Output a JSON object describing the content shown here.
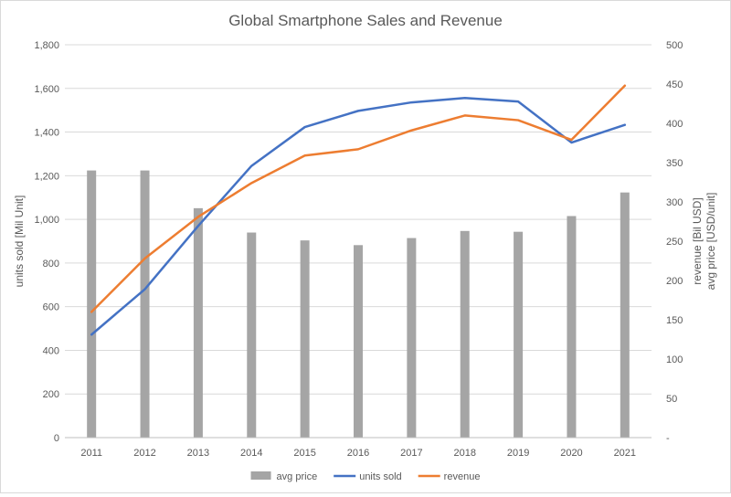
{
  "chart_data": {
    "type": "bar+line",
    "title": "Global Smartphone Sales and Revenue",
    "categories": [
      "2011",
      "2012",
      "2013",
      "2014",
      "2015",
      "2016",
      "2017",
      "2018",
      "2019",
      "2020",
      "2021"
    ],
    "y_left": {
      "label": "units sold [Mil Unit]",
      "range": [
        0,
        1800
      ],
      "ticks": [
        0,
        200,
        400,
        600,
        800,
        1000,
        1200,
        1400,
        1600,
        1800
      ],
      "tick_labels": [
        "0",
        "200",
        "400",
        "600",
        "800",
        "1,000",
        "1,200",
        "1,400",
        "1,600",
        "1,800"
      ]
    },
    "y_right": {
      "label_lines": [
        "revenue [Bil USD]",
        "avg price [USD/unit]"
      ],
      "range": [
        0,
        500
      ],
      "ticks": [
        0,
        50,
        100,
        150,
        200,
        250,
        300,
        350,
        400,
        450,
        500
      ],
      "tick_labels": [
        "-",
        "50",
        "100",
        "150",
        "200",
        "250",
        "300",
        "350",
        "400",
        "450",
        "500"
      ]
    },
    "grid": "horizontal",
    "legend_position": "bottom",
    "series": [
      {
        "name": "avg price",
        "type": "bar",
        "axis": "right",
        "color": "#a5a5a5",
        "values": [
          340,
          340,
          292,
          261,
          251,
          245,
          254,
          263,
          262,
          282,
          312
        ]
      },
      {
        "name": "units sold",
        "type": "line",
        "axis": "left",
        "color": "#4472c4",
        "values": [
          472,
          680,
          970,
          1245,
          1423,
          1497,
          1536,
          1556,
          1540,
          1352,
          1433
        ]
      },
      {
        "name": "revenue",
        "type": "line",
        "axis": "right",
        "color": "#ed7d31",
        "values": [
          160,
          228,
          281,
          324,
          359,
          367,
          391,
          410,
          404,
          379,
          448
        ]
      }
    ]
  }
}
